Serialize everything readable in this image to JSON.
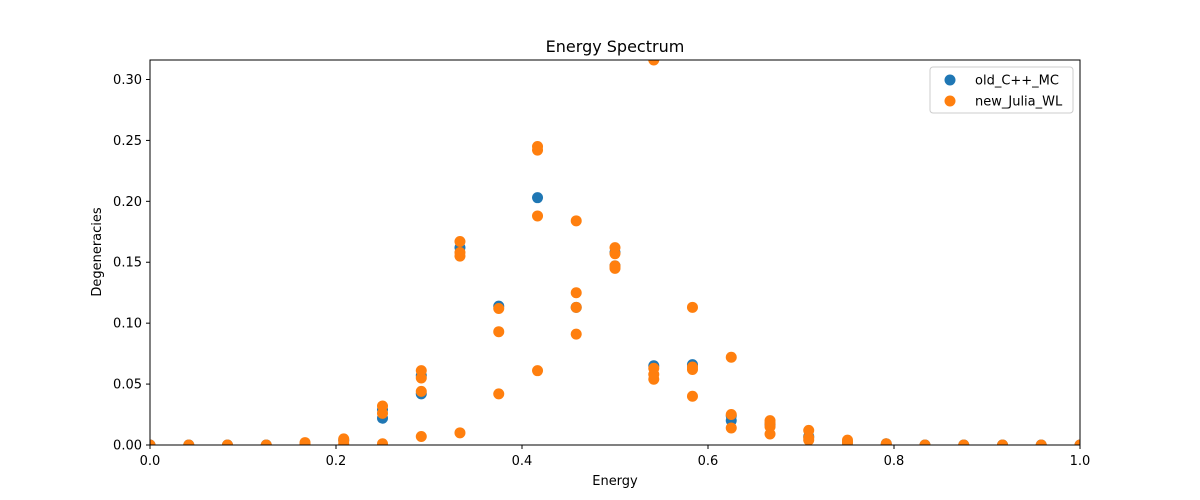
{
  "chart_data": {
    "type": "scatter",
    "title": "Energy Spectrum",
    "xlabel": "Energy",
    "ylabel": "Degeneracies",
    "xlim": [
      0.0,
      1.0
    ],
    "ylim": [
      0.0,
      0.316
    ],
    "xticks": [
      0.0,
      0.2,
      0.4,
      0.6,
      0.8,
      1.0
    ],
    "xtick_labels": [
      "0.0",
      "0.2",
      "0.4",
      "0.6",
      "0.8",
      "1.0"
    ],
    "yticks": [
      0.0,
      0.05,
      0.1,
      0.15,
      0.2,
      0.25,
      0.3
    ],
    "ytick_labels": [
      "0.00",
      "0.05",
      "0.10",
      "0.15",
      "0.20",
      "0.25",
      "0.30"
    ],
    "legend_position": "top-right",
    "series": [
      {
        "name": "old_C++_MC",
        "color": "#1f77b4",
        "points": [
          [
            0.0,
            0.0
          ],
          [
            0.0417,
            0.0
          ],
          [
            0.0833,
            0.0
          ],
          [
            0.125,
            0.0
          ],
          [
            0.1667,
            0.001
          ],
          [
            0.2083,
            0.004
          ],
          [
            0.25,
            0.022
          ],
          [
            0.25,
            0.029
          ],
          [
            0.2917,
            0.042
          ],
          [
            0.2917,
            0.057
          ],
          [
            0.3333,
            0.162
          ],
          [
            0.375,
            0.114
          ],
          [
            0.4167,
            0.203
          ],
          [
            0.4583,
            0.113
          ],
          [
            0.5,
            0.158
          ],
          [
            0.5,
            0.147
          ],
          [
            0.5417,
            0.065
          ],
          [
            0.5833,
            0.066
          ],
          [
            0.625,
            0.02
          ],
          [
            0.625,
            0.024
          ],
          [
            0.6667,
            0.017
          ],
          [
            0.7083,
            0.007
          ],
          [
            0.75,
            0.002
          ],
          [
            0.7917,
            0.001
          ],
          [
            0.8333,
            0.0
          ],
          [
            0.875,
            0.0
          ],
          [
            0.9167,
            0.0
          ],
          [
            0.9583,
            0.0
          ],
          [
            1.0,
            0.0
          ]
        ]
      },
      {
        "name": "new_Julia_WL",
        "color": "#ff7f0e",
        "points": [
          [
            0.0,
            0.0
          ],
          [
            0.0417,
            0.0
          ],
          [
            0.0833,
            0.0
          ],
          [
            0.125,
            0.0
          ],
          [
            0.1667,
            0.0
          ],
          [
            0.1667,
            0.002
          ],
          [
            0.2083,
            0.001
          ],
          [
            0.2083,
            0.003
          ],
          [
            0.2083,
            0.005
          ],
          [
            0.25,
            0.001
          ],
          [
            0.25,
            0.026
          ],
          [
            0.25,
            0.032
          ],
          [
            0.2917,
            0.007
          ],
          [
            0.2917,
            0.044
          ],
          [
            0.2917,
            0.055
          ],
          [
            0.2917,
            0.061
          ],
          [
            0.3333,
            0.01
          ],
          [
            0.3333,
            0.155
          ],
          [
            0.3333,
            0.158
          ],
          [
            0.3333,
            0.167
          ],
          [
            0.375,
            0.042
          ],
          [
            0.375,
            0.093
          ],
          [
            0.375,
            0.112
          ],
          [
            0.4167,
            0.061
          ],
          [
            0.4167,
            0.188
          ],
          [
            0.4167,
            0.242
          ],
          [
            0.4167,
            0.245
          ],
          [
            0.4583,
            0.091
          ],
          [
            0.4583,
            0.113
          ],
          [
            0.4583,
            0.125
          ],
          [
            0.4583,
            0.184
          ],
          [
            0.5,
            0.145
          ],
          [
            0.5,
            0.147
          ],
          [
            0.5,
            0.157
          ],
          [
            0.5,
            0.162
          ],
          [
            0.5417,
            0.054
          ],
          [
            0.5417,
            0.058
          ],
          [
            0.5417,
            0.063
          ],
          [
            0.5417,
            0.316
          ],
          [
            0.5833,
            0.04
          ],
          [
            0.5833,
            0.062
          ],
          [
            0.5833,
            0.064
          ],
          [
            0.5833,
            0.113
          ],
          [
            0.625,
            0.014
          ],
          [
            0.625,
            0.025
          ],
          [
            0.625,
            0.072
          ],
          [
            0.6667,
            0.009
          ],
          [
            0.6667,
            0.015
          ],
          [
            0.6667,
            0.018
          ],
          [
            0.6667,
            0.02
          ],
          [
            0.7083,
            0.004
          ],
          [
            0.7083,
            0.006
          ],
          [
            0.7083,
            0.012
          ],
          [
            0.75,
            0.002
          ],
          [
            0.75,
            0.004
          ],
          [
            0.7917,
            0.0
          ],
          [
            0.7917,
            0.001
          ],
          [
            0.8333,
            0.0
          ],
          [
            0.875,
            0.0
          ],
          [
            0.9167,
            0.0
          ],
          [
            0.9583,
            0.0
          ],
          [
            1.0,
            0.0
          ]
        ]
      }
    ]
  }
}
